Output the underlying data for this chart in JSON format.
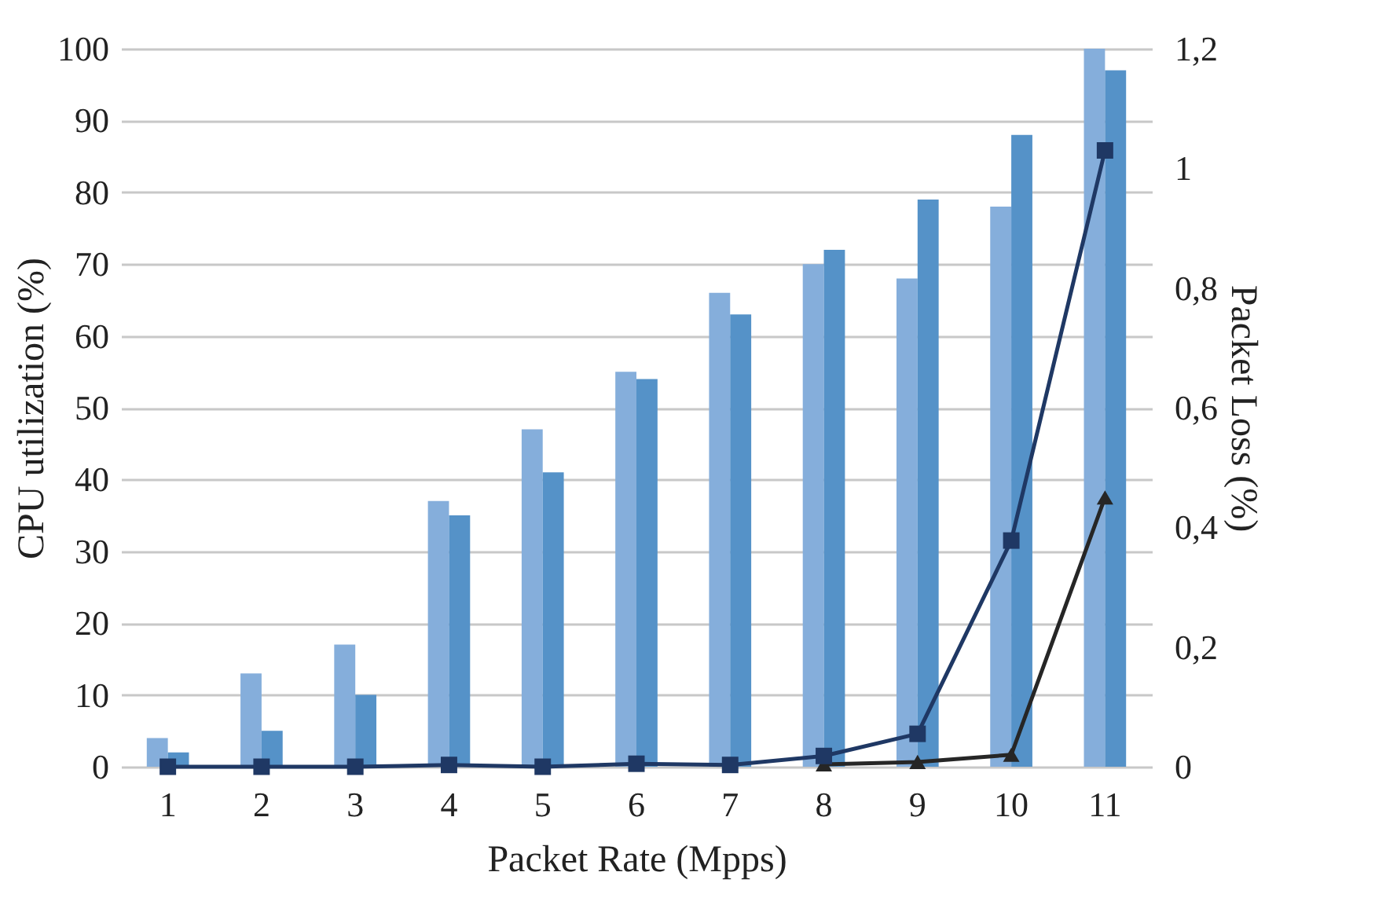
{
  "chart_data": {
    "type": "bar",
    "xlabel": "Packet Rate (Mpps)",
    "ylabel": "CPU utilization (%)",
    "y2label": "Packet Loss (%)",
    "categories": [
      "1",
      "2",
      "3",
      "4",
      "5",
      "6",
      "7",
      "8",
      "9",
      "10",
      "11"
    ],
    "ylim": [
      0,
      100
    ],
    "yticks": [
      0,
      10,
      20,
      30,
      40,
      50,
      60,
      70,
      80,
      90,
      100
    ],
    "y2lim": [
      0,
      1.2
    ],
    "y2ticks": [
      0,
      {
        "value": 0.2,
        "label": "0,2"
      },
      {
        "value": 0.4,
        "label": "0,4"
      },
      {
        "value": 0.6,
        "label": "0,6"
      },
      {
        "value": 0.8,
        "label": "0,8"
      },
      1,
      {
        "value": 1.2,
        "label": "1,2"
      }
    ],
    "grid": "y",
    "legend": false,
    "series": [
      {
        "color": "#85aedb",
        "values": [
          4,
          13,
          17,
          37,
          47,
          55,
          66,
          70,
          68,
          78,
          100
        ]
      },
      {
        "color": "#5592c8",
        "values": [
          2,
          5,
          10,
          35,
          41,
          54,
          63,
          72,
          79,
          88,
          97
        ]
      },
      {
        "type": "line",
        "axis": "y2",
        "marker": "square",
        "color": "#1f3864",
        "values": [
          0,
          0,
          0,
          0.003,
          0,
          0.005,
          0.003,
          0.018,
          0.055,
          0.378,
          1.03
        ]
      },
      {
        "type": "line",
        "axis": "y2",
        "marker": "triangle",
        "color": "#262626",
        "values": [
          null,
          null,
          null,
          null,
          null,
          null,
          null,
          0.004,
          0.008,
          0.02,
          0.45
        ]
      }
    ]
  }
}
